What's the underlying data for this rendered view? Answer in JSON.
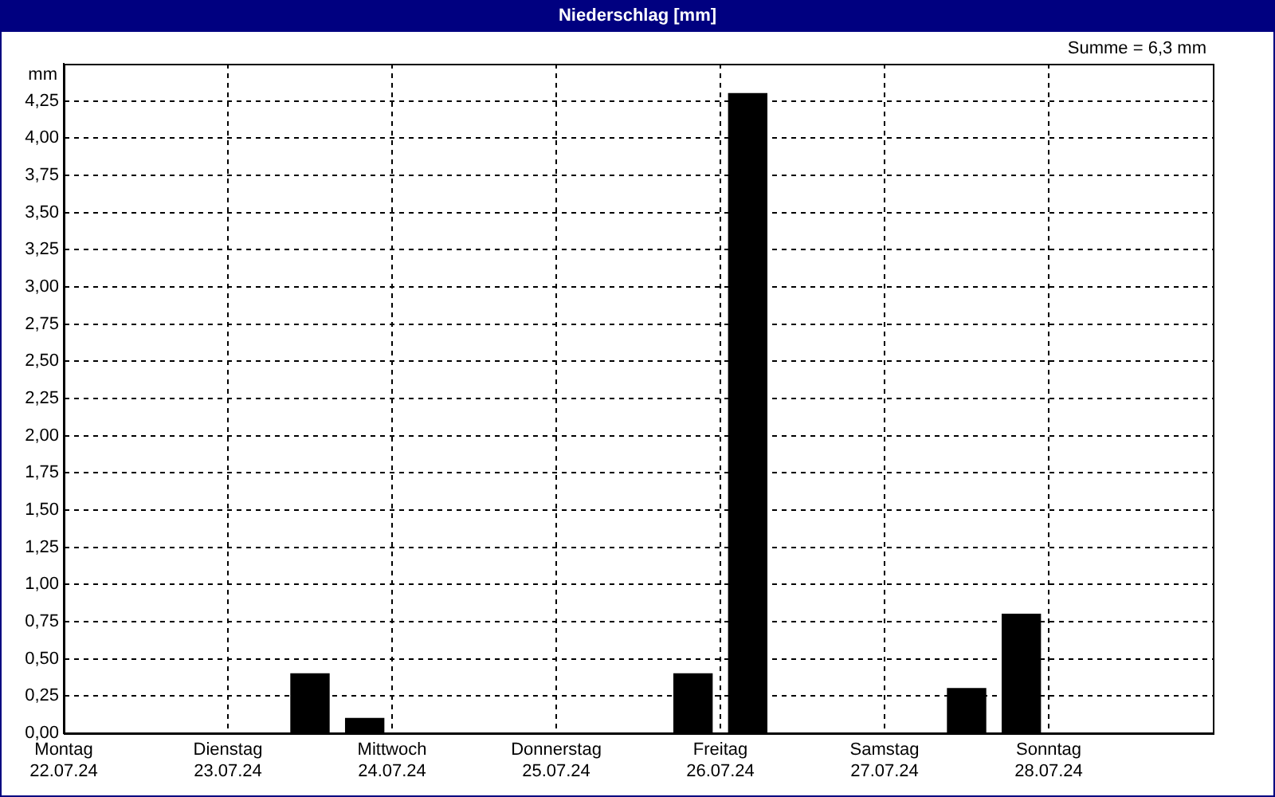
{
  "chart_data": {
    "type": "bar",
    "title": "Niederschlag [mm]",
    "ylabel": "mm",
    "annotations": [
      "Summe = 6,3 mm"
    ],
    "x": [
      "--07-23T12:00",
      "--07-23T20:00",
      "--07-25T20:00",
      "--07-26T04:00",
      "--07-27T12:00",
      "--07-27T20:00"
    ],
    "series": [
      {
        "color": "#000000",
        "values": [
          0.4,
          0.1,
          0.4,
          4.3,
          0.3,
          0.8
        ]
      }
    ],
    "xlim": [
      "--07-22T00:00",
      "--07-29T00:00"
    ],
    "xticks": [
      {
        "value": "--07-22T00:00",
        "label": "Montag\n22.07.24"
      },
      {
        "value": "--07-23T00:00",
        "label": "Dienstag\n23.07.24"
      },
      {
        "value": "--07-24T00:00",
        "label": "Mittwoch\n24.07.24"
      },
      {
        "value": "--07-25T00:00",
        "label": "Donnerstag\n25.07.24"
      },
      {
        "value": "--07-26T00:00",
        "label": "Freitag\n26.07.24"
      },
      {
        "value": "--07-27T00:00",
        "label": "Samstag\n27.07.24"
      },
      {
        "value": "--07-28T00:00",
        "label": "Sonntag\n28.07.24"
      }
    ],
    "ylim": [
      0,
      4.5
    ],
    "yticks": [
      {
        "value": 0,
        "label": "0,00"
      },
      {
        "value": 0.25,
        "label": "0,25"
      },
      {
        "value": 0.5,
        "label": "0,50"
      },
      {
        "value": 0.75,
        "label": "0,75"
      },
      {
        "value": 1,
        "label": "1,00"
      },
      {
        "value": 1.25,
        "label": "1,25"
      },
      {
        "value": 1.5,
        "label": "1,50"
      },
      {
        "value": 1.75,
        "label": "1,75"
      },
      {
        "value": 2,
        "label": "2,00"
      },
      {
        "value": 2.25,
        "label": "2,25"
      },
      {
        "value": 2.5,
        "label": "2,50"
      },
      {
        "value": 2.75,
        "label": "2,75"
      },
      {
        "value": 3,
        "label": "3,00"
      },
      {
        "value": 3.25,
        "label": "3,25"
      },
      {
        "value": 3.5,
        "label": "3,50"
      },
      {
        "value": 3.75,
        "label": "3,75"
      },
      {
        "value": 4,
        "label": "4,00"
      },
      {
        "value": 4.25,
        "label": "4,25"
      }
    ],
    "grid": true,
    "legend": false
  }
}
